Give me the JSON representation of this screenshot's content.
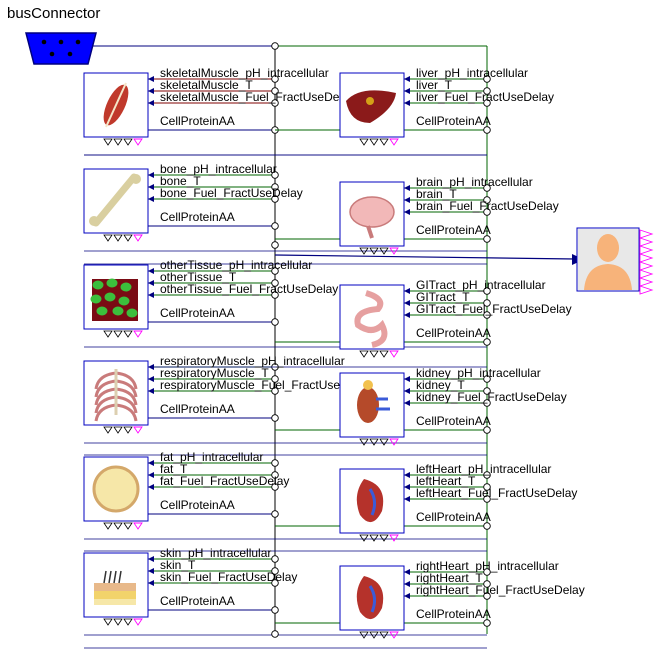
{
  "title": "busConnector",
  "left_blocks": [
    {
      "id": "skeletalMuscle",
      "icon": "muscle-icon",
      "labels": [
        "skeletalMuscle_pH_intracellular",
        "skeletalMuscle_T",
        "skeletalMuscle_Fuel_FractUseDelay"
      ],
      "cell_label": "CellProteinAA"
    },
    {
      "id": "bone",
      "icon": "bone-icon",
      "labels": [
        "bone_pH_intracellular",
        "bone_T",
        "bone_Fuel_FractUseDelay"
      ],
      "cell_label": "CellProteinAA"
    },
    {
      "id": "otherTissue",
      "icon": "tissue-icon",
      "labels": [
        "otherTissue_pH_intracellular",
        "otherTissue_T",
        "otherTissue_Fuel_FractUseDelay"
      ],
      "cell_label": "CellProteinAA"
    },
    {
      "id": "respiratoryMuscle",
      "icon": "ribcage-icon",
      "labels": [
        "respiratoryMuscle_pH_intracellular",
        "respiratoryMuscle_T",
        "respiratoryMuscle_Fuel_FractUseDelay"
      ],
      "cell_label": "CellProteinAA"
    },
    {
      "id": "fat",
      "icon": "fat-cell-icon",
      "labels": [
        "fat_pH_intracellular",
        "fat_T",
        "fat_Fuel_FractUseDelay"
      ],
      "cell_label": "CellProteinAA"
    },
    {
      "id": "skin",
      "icon": "skin-icon",
      "labels": [
        "skin_pH_intracellular",
        "skin_T",
        "skin_Fuel_FractUseDelay"
      ],
      "cell_label": "CellProteinAA"
    }
  ],
  "right_blocks": [
    {
      "id": "liver",
      "icon": "liver-icon",
      "labels": [
        "liver_pH_intracellular",
        "liver_T",
        "liver_Fuel_FractUseDelay"
      ],
      "cell_label": "CellProteinAA"
    },
    {
      "id": "brain",
      "icon": "brain-icon",
      "labels": [
        "brain_pH_intracellular",
        "brain_T",
        "brain_Fuel_FractUseDelay"
      ],
      "cell_label": "CellProteinAA"
    },
    {
      "id": "GITract",
      "icon": "gi-tract-icon",
      "labels": [
        "GITract_pH_intracellular",
        "GITract_T",
        "GITract_Fuel_FractUseDelay"
      ],
      "cell_label": "CellProteinAA"
    },
    {
      "id": "kidney",
      "icon": "kidney-icon",
      "labels": [
        "kidney_pH_intracellular",
        "kidney_T",
        "kidney_Fuel_FractUseDelay"
      ],
      "cell_label": "CellProteinAA"
    },
    {
      "id": "leftHeart",
      "icon": "heart-icon",
      "labels": [
        "leftHeart_pH_intracellular",
        "leftHeart_T",
        "leftHeart_Fuel_FractUseDelay"
      ],
      "cell_label": "CellProteinAA"
    },
    {
      "id": "rightHeart",
      "icon": "heart-icon",
      "labels": [
        "rightHeart_pH_intracellular",
        "rightHeart_T",
        "rightHeart_Fuel_FractUseDelay"
      ],
      "cell_label": "CellProteinAA"
    }
  ],
  "output_block": {
    "icon": "person-icon"
  },
  "colors": {
    "block_border": "#0000c0",
    "wire_blue": "#00007f",
    "wire_green": "#006400",
    "wire_maroon": "#7f0000",
    "bus_fill": "#0000ff",
    "port_magenta": "#ff00ff"
  }
}
